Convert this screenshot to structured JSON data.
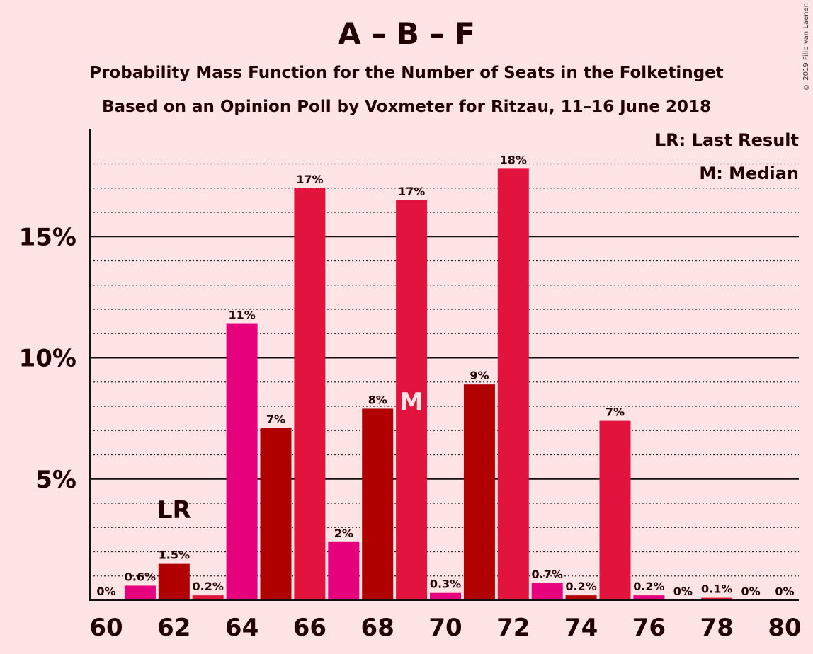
{
  "header": {
    "title": "A – B – F",
    "subtitle1": "Probability Mass Function for the Number of Seats in the Folketinget",
    "subtitle2": "Based on an Opinion Poll by Voxmeter for Ritzau, 11–16 June 2018",
    "copyright": "© 2019 Filip van Laenen"
  },
  "legend": {
    "lr": "LR: Last Result",
    "median": "M: Median"
  },
  "colors": {
    "background": "#ffe4e6",
    "pink": "#e6007e",
    "darkred": "#b00000",
    "crimson": "#e2133d"
  },
  "chart_data": {
    "type": "bar",
    "categories": [
      60,
      61,
      62,
      63,
      64,
      65,
      66,
      67,
      68,
      69,
      70,
      71,
      72,
      73,
      74,
      75,
      76,
      77,
      78,
      79,
      80
    ],
    "x_tick_labels": [
      "60",
      "62",
      "64",
      "66",
      "68",
      "70",
      "72",
      "74",
      "76",
      "78",
      "80"
    ],
    "values": [
      0,
      0.6,
      1.5,
      0.2,
      11.4,
      7.1,
      17.0,
      2.4,
      7.9,
      16.5,
      0.3,
      8.9,
      17.8,
      0.7,
      0.2,
      7.4,
      0.2,
      0,
      0.1,
      0,
      0
    ],
    "value_labels": [
      "0%",
      "0.6%",
      "1.5%",
      "0.2%",
      "11%",
      "7%",
      "17%",
      "2%",
      "8%",
      "17%",
      "0.3%",
      "9%",
      "18%",
      "0.7%",
      "0.2%",
      "7%",
      "0.2%",
      "0%",
      "0.1%",
      "0%",
      "0%"
    ],
    "bar_colors": [
      "#e2133d",
      "#e6007e",
      "#b00000",
      "#e2133d",
      "#e6007e",
      "#b00000",
      "#e2133d",
      "#e6007e",
      "#b00000",
      "#e2133d",
      "#e6007e",
      "#b00000",
      "#e2133d",
      "#e6007e",
      "#b00000",
      "#e2133d",
      "#e6007e",
      "#b00000",
      "#e2133d",
      "#e6007e",
      "#b00000"
    ],
    "y_ticks": [
      5,
      10,
      15
    ],
    "y_tick_labels": [
      "5%",
      "10%",
      "15%"
    ],
    "ylim": [
      0,
      19.5
    ],
    "last_result_seat": 62,
    "last_result_label": "LR",
    "median_seat": 69,
    "median_label": "M",
    "grid": true
  }
}
